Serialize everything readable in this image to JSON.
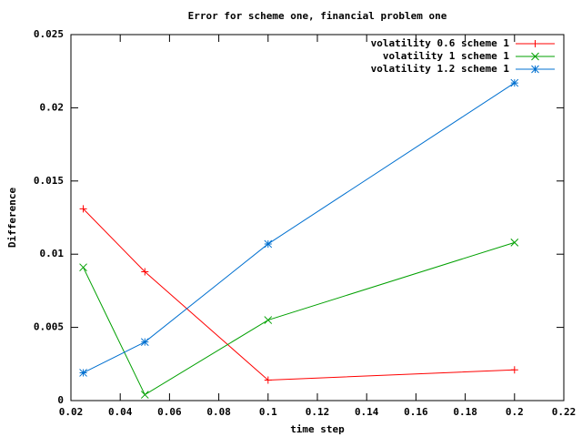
{
  "chart_data": {
    "type": "line",
    "title": "Error for scheme one, financial problem one",
    "x_label": "time step",
    "y_label": "Difference",
    "x": [
      0.025,
      0.05,
      0.1,
      0.2
    ],
    "series": [
      {
        "name": "volatility 0.6 scheme 1",
        "color": "#ff0000",
        "marker": "plus",
        "values": [
          0.0131,
          0.0088,
          0.0014,
          0.0021
        ]
      },
      {
        "name": "volatility 1 scheme 1",
        "color": "#00a000",
        "marker": "cross",
        "values": [
          0.0091,
          0.0004,
          0.0055,
          0.0108
        ]
      },
      {
        "name": "volatility 1.2 scheme 1",
        "color": "#0070d0",
        "marker": "star",
        "values": [
          0.0019,
          0.004,
          0.0107,
          0.0217
        ]
      }
    ],
    "xlim": [
      0.02,
      0.22
    ],
    "xticks": [
      0.02,
      0.04,
      0.06,
      0.08,
      0.1,
      0.12,
      0.14,
      0.16,
      0.18,
      0.2,
      0.22
    ],
    "ylim": [
      0,
      0.025
    ],
    "yticks": [
      0,
      0.005,
      0.01,
      0.015,
      0.02,
      0.025
    ],
    "grid": false,
    "legend": "top-right"
  }
}
